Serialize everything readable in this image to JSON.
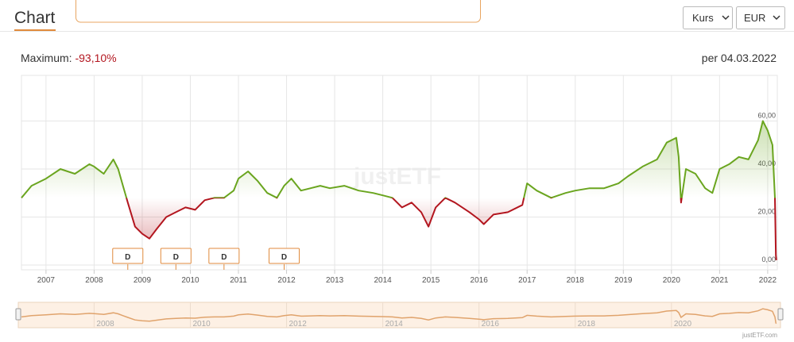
{
  "header": {
    "title": "Chart",
    "selects": [
      "Kurs",
      "EUR"
    ]
  },
  "chart_data": {
    "type": "line",
    "max_label": "Maximum:",
    "max_value": "-93,10%",
    "date_label": "per 04.03.2022",
    "watermark": "justETF",
    "credit": "justETF.com",
    "x": [
      2006.49,
      2006.7,
      2007.0,
      2007.3,
      2007.6,
      2007.9,
      2008.0,
      2008.2,
      2008.4,
      2008.5,
      2008.6,
      2008.7,
      2008.85,
      2009.0,
      2009.15,
      2009.3,
      2009.5,
      2009.7,
      2009.9,
      2010.1,
      2010.3,
      2010.5,
      2010.7,
      2010.9,
      2011.0,
      2011.2,
      2011.4,
      2011.6,
      2011.8,
      2011.95,
      2012.1,
      2012.3,
      2012.5,
      2012.7,
      2012.9,
      2013.2,
      2013.5,
      2013.8,
      2014.0,
      2014.2,
      2014.4,
      2014.6,
      2014.8,
      2014.95,
      2015.1,
      2015.3,
      2015.5,
      2015.8,
      2016.0,
      2016.1,
      2016.3,
      2016.6,
      2016.9,
      2017.0,
      2017.2,
      2017.5,
      2017.8,
      2018.0,
      2018.3,
      2018.6,
      2018.9,
      2019.1,
      2019.4,
      2019.7,
      2019.9,
      2020.1,
      2020.15,
      2020.2,
      2020.3,
      2020.5,
      2020.7,
      2020.85,
      2021.0,
      2021.2,
      2021.4,
      2021.6,
      2021.8,
      2021.9,
      2022.0,
      2022.1,
      2022.15,
      2022.17,
      2022.18
    ],
    "series": [
      {
        "color_above": "#6aa51f",
        "color_below": "#b3161f",
        "values": [
          28,
          33,
          36,
          40,
          38,
          42,
          41,
          38,
          44,
          40,
          33,
          26,
          16,
          13,
          11,
          15,
          20,
          22,
          24,
          23,
          27,
          28,
          28,
          31,
          36,
          39,
          35,
          30,
          28,
          33,
          36,
          31,
          32,
          33,
          32,
          33,
          31,
          30,
          29,
          28,
          24,
          26,
          22,
          16,
          24,
          28,
          26,
          22,
          19,
          17,
          21,
          22,
          25,
          34,
          31,
          28,
          30,
          31,
          32,
          32,
          34,
          37,
          41,
          44,
          51,
          53,
          45,
          26,
          40,
          38,
          32,
          30,
          40,
          42,
          45,
          44,
          52,
          60,
          56,
          50,
          28,
          4,
          2
        ]
      }
    ],
    "xlim": [
      2006.49,
      2022.2
    ],
    "ylim": [
      -2,
      79
    ],
    "xticks": [
      2007,
      2008,
      2009,
      2010,
      2011,
      2012,
      2013,
      2014,
      2015,
      2016,
      2017,
      2018,
      2019,
      2020,
      2021,
      2022
    ],
    "yticks": [
      {
        "value": 0,
        "label": "0,00"
      },
      {
        "value": 20,
        "label": "20,00"
      },
      {
        "value": 40,
        "label": "40,00"
      },
      {
        "value": 60,
        "label": "60,00"
      }
    ],
    "grid": true,
    "markers": {
      "x": [
        2008.7,
        2009.7,
        2010.7,
        2011.95
      ],
      "label": "D",
      "color": "#e08a3c"
    },
    "navigator": {
      "xticks": [
        2008,
        2010,
        2012,
        2014,
        2016,
        2018,
        2020
      ],
      "color": "#e0a36c",
      "fill": "#fdf0e4"
    }
  }
}
